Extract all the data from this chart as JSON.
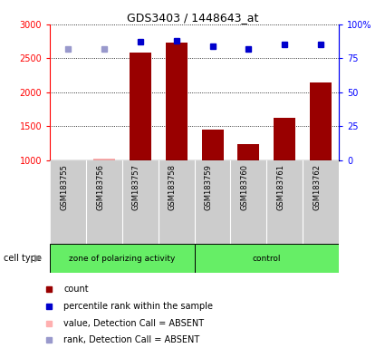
{
  "title": "GDS3403 / 1448643_at",
  "samples": [
    "GSM183755",
    "GSM183756",
    "GSM183757",
    "GSM183758",
    "GSM183759",
    "GSM183760",
    "GSM183761",
    "GSM183762"
  ],
  "bar_values": [
    1000,
    1020,
    2580,
    2730,
    1450,
    1230,
    1620,
    2150
  ],
  "bar_absent": [
    true,
    true,
    false,
    false,
    false,
    false,
    false,
    false
  ],
  "percentile_values": [
    82,
    82,
    87,
    88,
    84,
    82,
    85,
    85
  ],
  "percentile_absent": [
    true,
    true,
    false,
    false,
    false,
    false,
    false,
    false
  ],
  "ylim_left": [
    1000,
    3000
  ],
  "ylim_right": [
    0,
    100
  ],
  "yticks_left": [
    1000,
    1500,
    2000,
    2500,
    3000
  ],
  "yticks_right": [
    0,
    25,
    50,
    75,
    100
  ],
  "ytick_labels_right": [
    "0",
    "25",
    "50",
    "75",
    "100%"
  ],
  "group1_label": "zone of polarizing activity",
  "group2_label": "control",
  "group1_count": 4,
  "group2_count": 4,
  "bar_color_present": "#990000",
  "bar_color_absent": "#ffb0b0",
  "percentile_color_present": "#0000cc",
  "percentile_color_absent": "#9999cc",
  "bg_color_plot": "#ffffff",
  "bg_color_xlabel": "#cccccc",
  "group_label_color": "#66ee66",
  "group_border_color": "#000000",
  "cell_type_label": "cell type",
  "legend_items": [
    {
      "label": "count",
      "color": "#990000"
    },
    {
      "label": "percentile rank within the sample",
      "color": "#0000cc"
    },
    {
      "label": "value, Detection Call = ABSENT",
      "color": "#ffb0b0"
    },
    {
      "label": "rank, Detection Call = ABSENT",
      "color": "#9999cc"
    }
  ]
}
